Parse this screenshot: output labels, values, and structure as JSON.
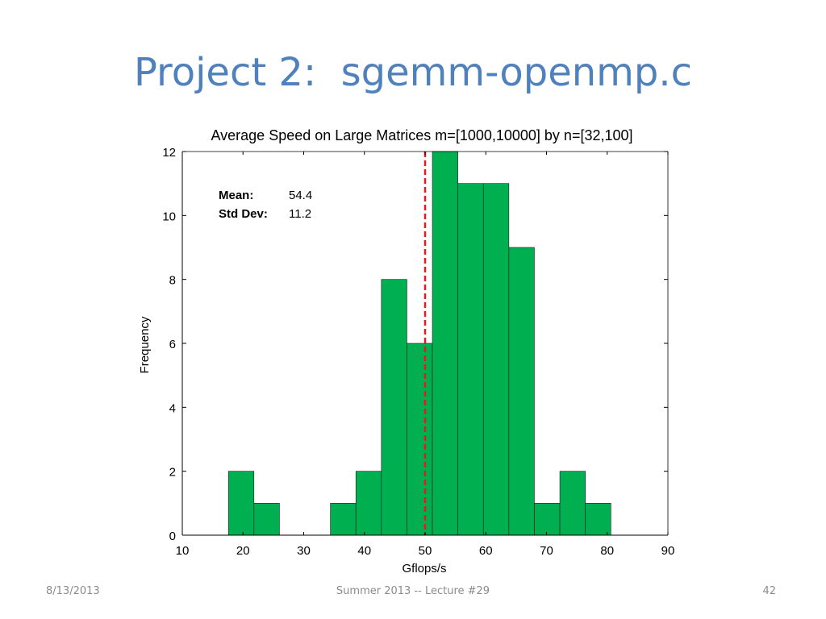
{
  "slide": {
    "title": "Project 2:  sgemm-openmp.c",
    "footer_date": "8/13/2013",
    "footer_center": "Summer 2013 -- Lecture #29",
    "footer_page": "42"
  },
  "colors": {
    "title": "#4f81bd",
    "bar_fill": "#00b050",
    "mean_line": "#e41a1c"
  },
  "chart_data": {
    "type": "bar",
    "title": "Average Speed on Large Matrices m=[1000,10000] by n=[32,100]",
    "xlabel": "Gflops/s",
    "ylabel": "Frequency",
    "xlim": [
      10,
      90
    ],
    "ylim": [
      0,
      12
    ],
    "xticks": [
      10,
      20,
      30,
      40,
      50,
      60,
      70,
      80,
      90
    ],
    "yticks": [
      0,
      2,
      4,
      6,
      8,
      10,
      12
    ],
    "bins": [
      {
        "x0": 17.6,
        "x1": 21.8,
        "count": 2
      },
      {
        "x0": 21.8,
        "x1": 26.0,
        "count": 1
      },
      {
        "x0": 26.0,
        "x1": 30.2,
        "count": 0
      },
      {
        "x0": 30.2,
        "x1": 34.4,
        "count": 0
      },
      {
        "x0": 34.4,
        "x1": 38.6,
        "count": 1
      },
      {
        "x0": 38.6,
        "x1": 42.8,
        "count": 2
      },
      {
        "x0": 42.8,
        "x1": 47.0,
        "count": 8
      },
      {
        "x0": 47.0,
        "x1": 51.2,
        "count": 6
      },
      {
        "x0": 51.2,
        "x1": 55.4,
        "count": 12
      },
      {
        "x0": 55.4,
        "x1": 59.6,
        "count": 11
      },
      {
        "x0": 59.6,
        "x1": 63.8,
        "count": 11
      },
      {
        "x0": 63.8,
        "x1": 68.0,
        "count": 9
      },
      {
        "x0": 68.0,
        "x1": 72.2,
        "count": 1
      },
      {
        "x0": 72.2,
        "x1": 76.4,
        "count": 2
      },
      {
        "x0": 76.4,
        "x1": 80.6,
        "count": 1
      }
    ],
    "reference_line": {
      "x": 50,
      "style": "dashed"
    },
    "annotations": [
      {
        "label": "Mean:",
        "value": "54.4"
      },
      {
        "label": "Std Dev:",
        "value": "11.2"
      }
    ],
    "grid": false
  }
}
